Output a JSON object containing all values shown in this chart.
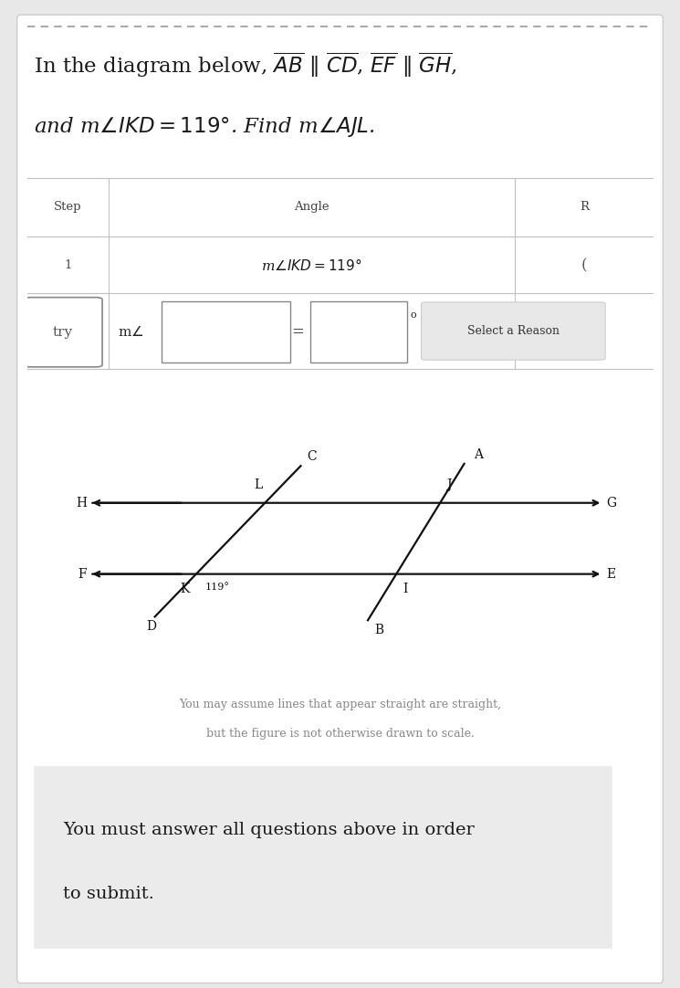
{
  "bg_color": "#e8e8e8",
  "card_color": "#ffffff",
  "title_line1": "In the diagram below, $\\overline{AB}$ $\\|$ $\\overline{CD}$, $\\overline{EF}$ $\\|$ $\\overline{GH}$,",
  "title_line2": "and m$\\angle IKD = 119°$. Find m$\\angle AJL$.",
  "footnote1": "You may assume lines that appear straight are straight,",
  "footnote2": "but the figure is not otherwise drawn to scale.",
  "submit_text1": "You must answer all questions above in order",
  "submit_text2": "to submit.",
  "col1": 0.13,
  "col2": 0.78,
  "angle_label": "119°"
}
